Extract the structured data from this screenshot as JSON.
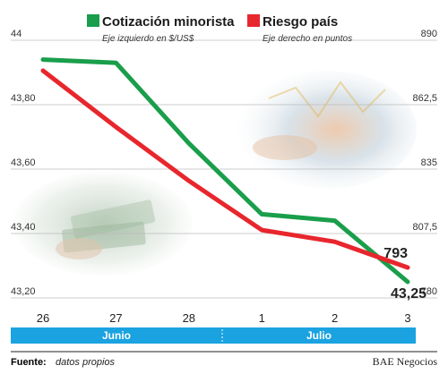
{
  "chart_data": {
    "type": "line",
    "categories": [
      "26",
      "27",
      "28",
      "1",
      "2",
      "3"
    ],
    "months": [
      "Junio",
      "Julio"
    ],
    "y_left": {
      "ticks": [
        "44",
        "43,80",
        "43,60",
        "43,40",
        "43,20"
      ],
      "ylim": [
        43.2,
        44.0
      ]
    },
    "y_right": {
      "ticks": [
        "890",
        "862,5",
        "835",
        "807,5",
        "780"
      ],
      "ylim": [
        780,
        890
      ]
    },
    "series": [
      {
        "name": "Cotización minorista",
        "subtitle": "Eje izquierdo en $/US$",
        "axis": "left",
        "color": "#1a9e4b",
        "values": [
          43.94,
          43.93,
          43.68,
          43.46,
          43.44,
          43.25
        ]
      },
      {
        "name": "Riesgo país",
        "subtitle": "Eje derecho en puntos",
        "axis": "right",
        "color": "#e8262d",
        "values": [
          877,
          853,
          830,
          809,
          804,
          793
        ]
      }
    ],
    "end_labels": [
      "43,25",
      "793"
    ],
    "grid": true
  },
  "footer": {
    "source_label": "Fuente:",
    "source_text": "datos propios",
    "publisher": "BAE Negocios"
  },
  "colors": {
    "month_bar": "#1aa3e0",
    "grid": "#bbbbbb"
  }
}
